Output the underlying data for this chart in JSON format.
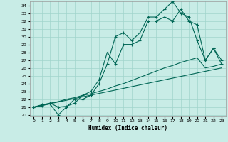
{
  "xlabel": "Humidex (Indice chaleur)",
  "xlim": [
    -0.5,
    23.5
  ],
  "ylim": [
    19.8,
    34.5
  ],
  "yticks": [
    20,
    21,
    22,
    23,
    24,
    25,
    26,
    27,
    28,
    29,
    30,
    31,
    32,
    33,
    34
  ],
  "xticks": [
    0,
    1,
    2,
    3,
    4,
    5,
    6,
    7,
    8,
    9,
    10,
    11,
    12,
    13,
    14,
    15,
    16,
    17,
    18,
    19,
    20,
    21,
    22,
    23
  ],
  "bg_color": "#c8ece6",
  "grid_color": "#a0d4cc",
  "line_color": "#006655",
  "line1_x": [
    0,
    1,
    2,
    3,
    4,
    5,
    6,
    7,
    8,
    9,
    10,
    11,
    12,
    13,
    14,
    15,
    16,
    17,
    18,
    19,
    20,
    21,
    22,
    23
  ],
  "line1_y": [
    21.0,
    21.3,
    21.5,
    21.0,
    21.1,
    21.5,
    22.5,
    23.0,
    24.5,
    28.0,
    26.5,
    29.0,
    29.0,
    29.5,
    32.0,
    32.0,
    32.5,
    32.0,
    33.5,
    32.0,
    31.5,
    27.0,
    28.5,
    26.5
  ],
  "line2_x": [
    0,
    1,
    2,
    3,
    4,
    5,
    6,
    7,
    8,
    9,
    10,
    11,
    12,
    13,
    14,
    15,
    16,
    17,
    18,
    19,
    20,
    21,
    22,
    23
  ],
  "line2_y": [
    21.0,
    21.2,
    21.4,
    20.0,
    21.0,
    22.0,
    22.0,
    22.5,
    24.0,
    26.5,
    30.0,
    30.5,
    29.5,
    30.5,
    32.5,
    32.5,
    33.5,
    34.5,
    33.0,
    32.5,
    29.5,
    27.0,
    28.5,
    27.0
  ],
  "line3_x": [
    0,
    1,
    2,
    3,
    4,
    5,
    6,
    7,
    8,
    9,
    10,
    11,
    12,
    13,
    14,
    15,
    16,
    17,
    18,
    19,
    20,
    21,
    22,
    23
  ],
  "line3_y": [
    21.0,
    21.2,
    21.5,
    21.7,
    22.0,
    22.2,
    22.5,
    22.7,
    23.0,
    23.3,
    23.7,
    24.0,
    24.4,
    24.8,
    25.2,
    25.6,
    26.0,
    26.3,
    26.7,
    27.0,
    27.3,
    26.0,
    26.2,
    26.5
  ],
  "line4_x": [
    0,
    23
  ],
  "line4_y": [
    21.0,
    26.0
  ]
}
